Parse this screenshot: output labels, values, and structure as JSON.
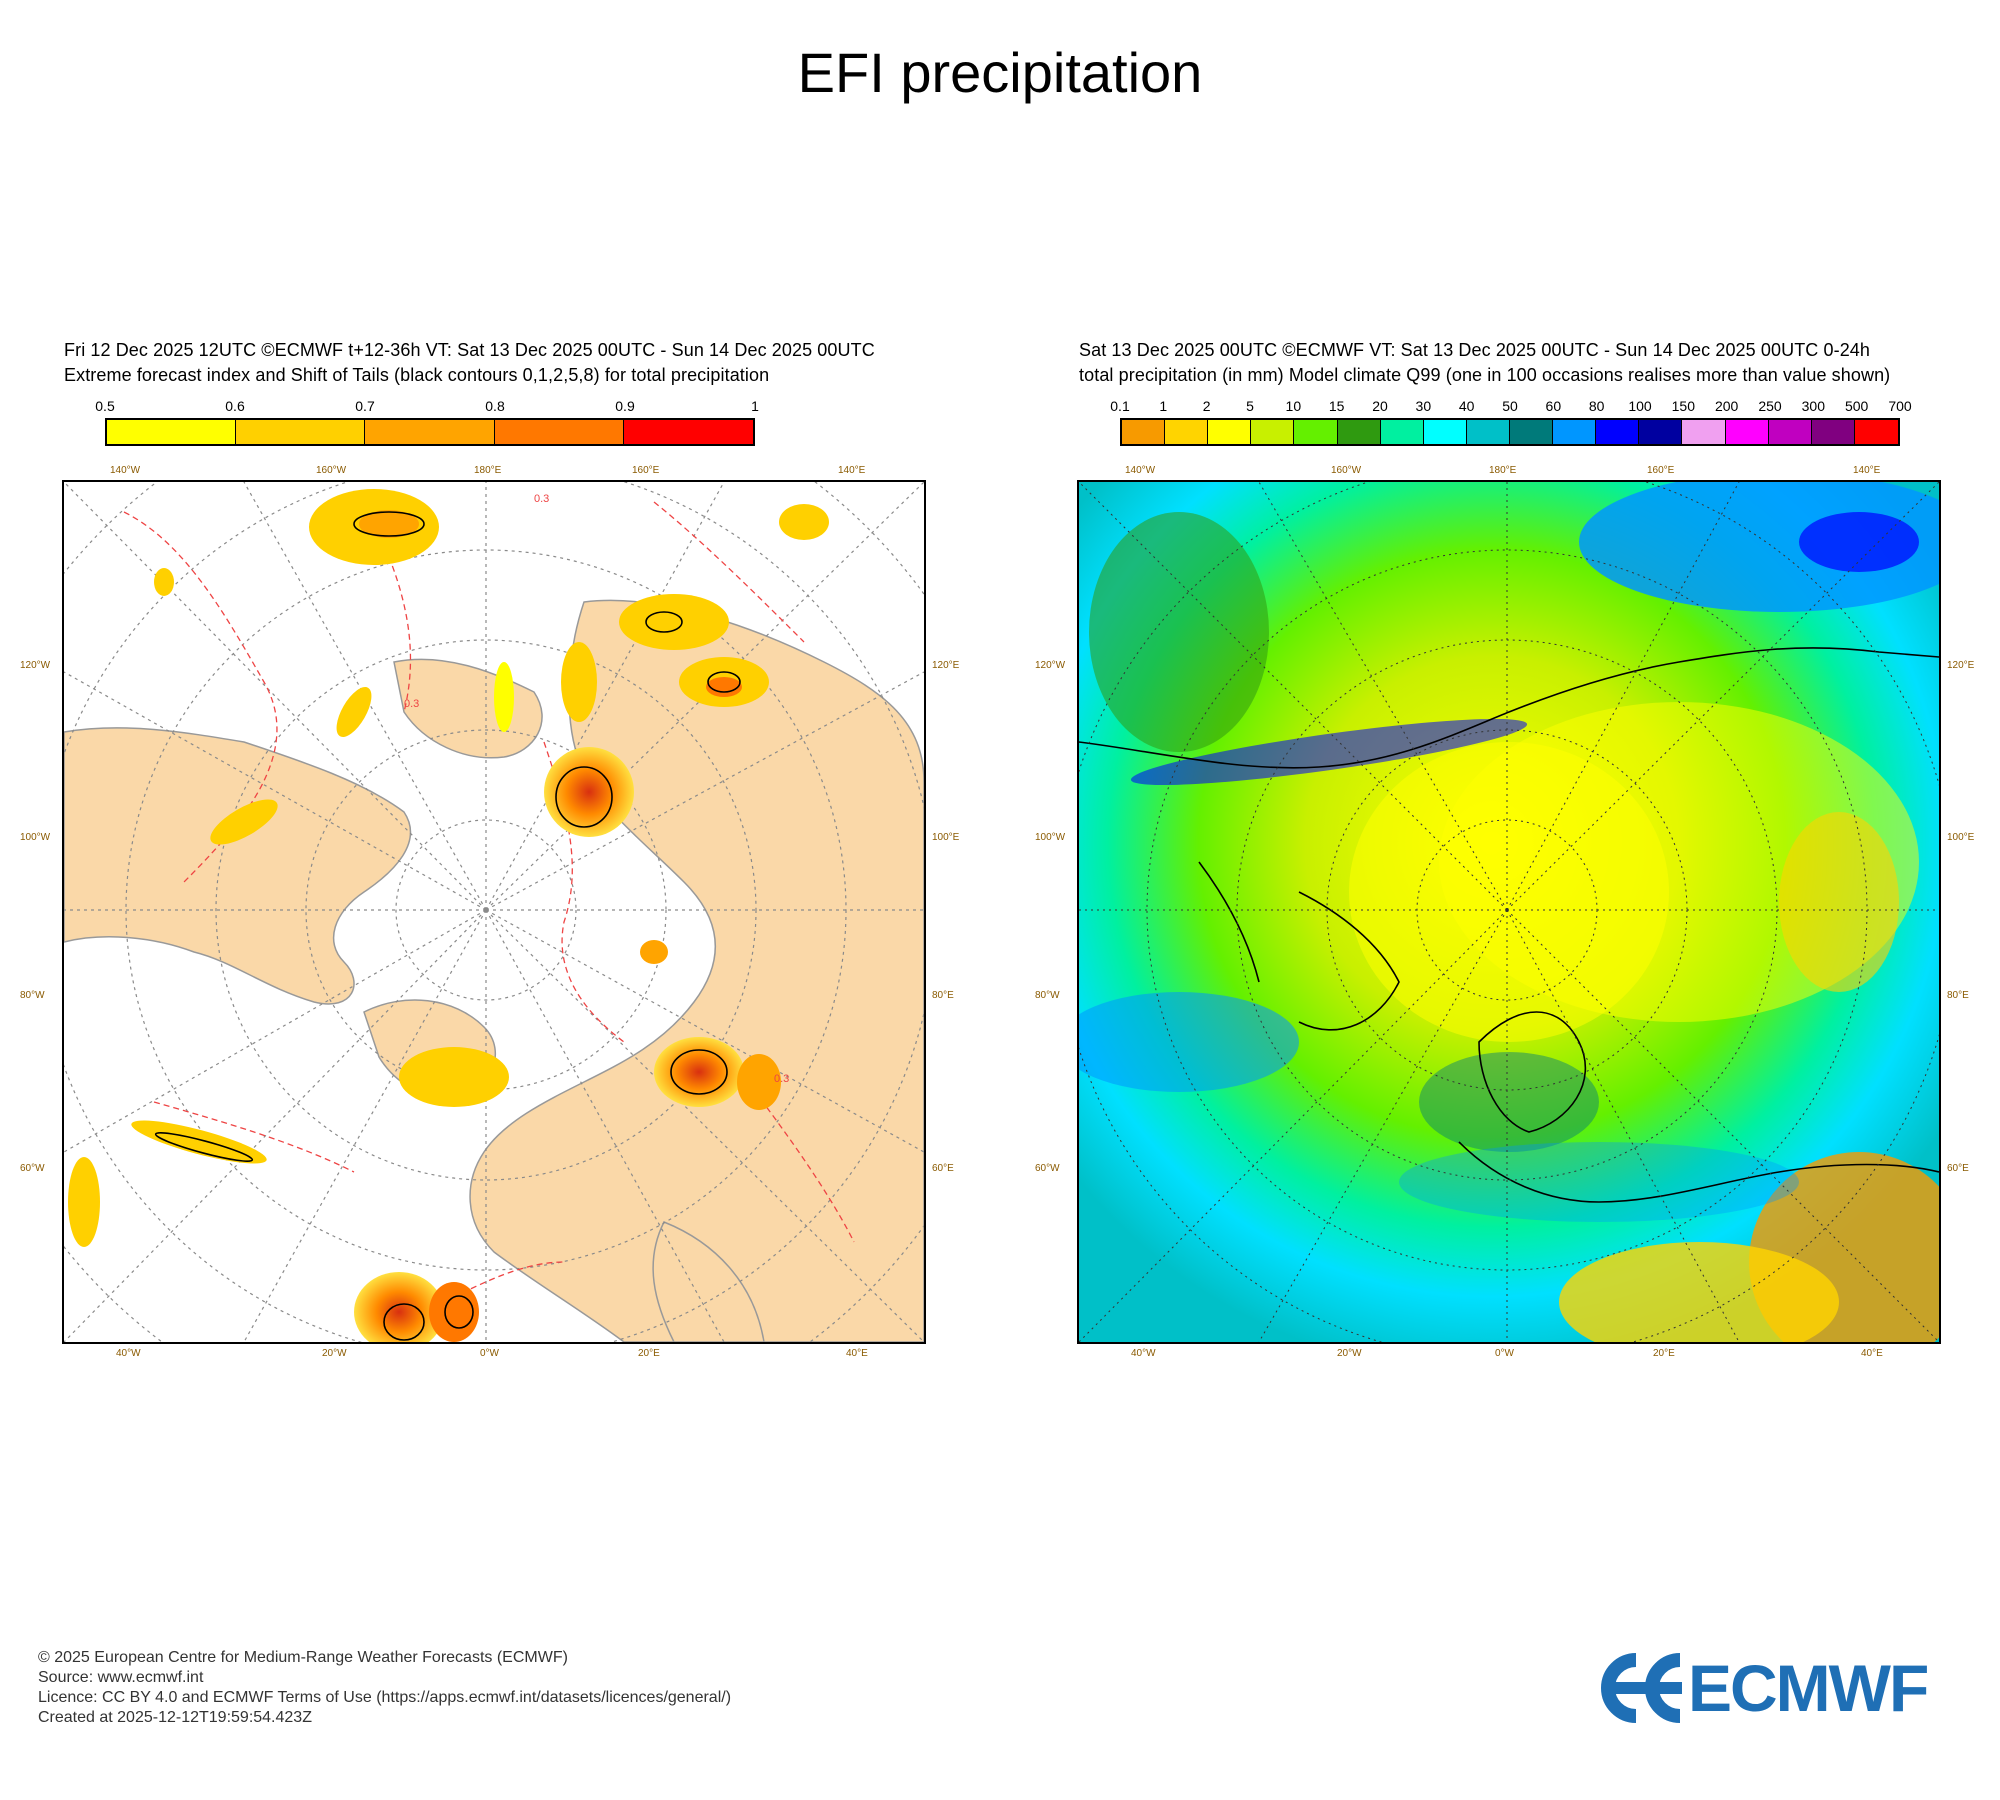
{
  "page": {
    "title": "EFI precipitation"
  },
  "left_panel": {
    "header_line1": "Fri 12 Dec 2025 12UTC ©ECMWF t+12-36h  VT: Sat 13 Dec 2025 00UTC - Sun 14 Dec 2025 00UTC",
    "header_line2": "Extreme forecast index and Shift of Tails (black contours 0,1,2,5,8) for total precipitation",
    "colorbar": {
      "labels": [
        "0.5",
        "0.6",
        "0.7",
        "0.8",
        "0.9",
        "1"
      ],
      "colors": [
        "#ffff00",
        "#ffd000",
        "#ffa400",
        "#ff7800",
        "#ff0000"
      ]
    },
    "map": {
      "top_ticks": [
        "140°W",
        "160°W",
        "180°E",
        "160°E",
        "140°E"
      ],
      "bottom_ticks": [
        "40°W",
        "20°W",
        "0°W",
        "20°E",
        "40°E"
      ],
      "left_ticks": [
        "120°W",
        "100°W",
        "80°W",
        "60°W"
      ],
      "right_ticks": [
        "120°E",
        "100°E",
        "80°E",
        "60°E"
      ],
      "contour_label": "0.3",
      "land_color": "#fad8a8",
      "ocean_color": "#ffffff"
    }
  },
  "right_panel": {
    "header_line1": "Sat 13 Dec 2025 00UTC ©ECMWF VT: Sat 13 Dec 2025 00UTC - Sun 14 Dec 2025 00UTC   0-24h",
    "header_line2": "total precipitation (in mm)  Model climate Q99 (one in 100 occasions realises more than value shown)",
    "colorbar": {
      "labels": [
        "0.1",
        "1",
        "2",
        "5",
        "10",
        "15",
        "20",
        "30",
        "40",
        "50",
        "60",
        "80",
        "100",
        "150",
        "200",
        "250",
        "300",
        "500",
        "700"
      ],
      "colors": [
        "#f79a00",
        "#ffd400",
        "#ffff00",
        "#c8f000",
        "#64f000",
        "#2f9a10",
        "#00f0a0",
        "#00ffff",
        "#00c0c8",
        "#007a7a",
        "#0096ff",
        "#0000ff",
        "#0000a0",
        "#f0a0f0",
        "#ff00ff",
        "#c000c0",
        "#800080",
        "#ff0000"
      ]
    },
    "map": {
      "top_ticks": [
        "140°W",
        "160°W",
        "180°E",
        "160°E",
        "140°E"
      ],
      "bottom_ticks": [
        "40°W",
        "20°W",
        "0°W",
        "20°E",
        "40°E"
      ],
      "left_ticks": [
        "120°W",
        "100°W",
        "80°W",
        "60°W"
      ],
      "right_ticks": [
        "120°E",
        "100°E",
        "80°E",
        "60°E"
      ]
    }
  },
  "footer": {
    "line1": "© 2025 European Centre for Medium-Range Weather Forecasts (ECMWF)",
    "line2": "Source: www.ecmwf.int",
    "line3": "Licence: CC BY 4.0 and ECMWF Terms of Use (https://apps.ecmwf.int/datasets/licences/general/)",
    "line4": "Created at 2025-12-12T19:59:54.423Z"
  },
  "logo": {
    "text": "ECMWF"
  }
}
